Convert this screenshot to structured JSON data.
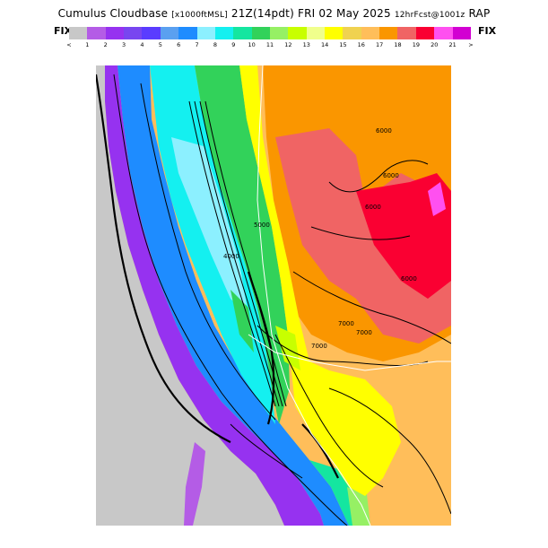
{
  "header": {
    "title_main": "Cumulus Cloudbase",
    "title_units": "[x1000ftMSL]",
    "title_valid": "21Z(14pdt) FRI 02 May 2025",
    "title_fcst": "12hrFcst@1001z",
    "title_model": "RAP",
    "fix_left": "FIX",
    "fix_right": "FIX"
  },
  "scale": {
    "colors": [
      "#c8c8c8",
      "#b45ce6",
      "#9632f0",
      "#7846f0",
      "#5a3cff",
      "#5aa0f0",
      "#1e8cff",
      "#8cf0ff",
      "#14f0f0",
      "#14e6a0",
      "#32d25a",
      "#96f064",
      "#c8ff00",
      "#f0ff8c",
      "#ffff00",
      "#f0d250",
      "#ffbe5a",
      "#fa9600",
      "#f06464",
      "#fa0032",
      "#ff50f0",
      "#d200d2"
    ],
    "labels": [
      "<",
      "1",
      "2",
      "3",
      "4",
      "5",
      "6",
      "7",
      "8",
      "9",
      "10",
      "11",
      "12",
      "13",
      "14",
      "15",
      "16",
      "17",
      "18",
      "19",
      "20",
      "21",
      ">"
    ]
  },
  "map": {
    "contour_labels": [
      "6000",
      "6000",
      "6000",
      "6000",
      "7000",
      "7000",
      "7000",
      "4000",
      "5000"
    ]
  }
}
